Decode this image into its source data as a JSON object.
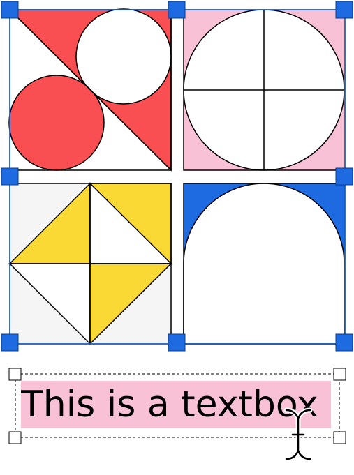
{
  "colors": {
    "red": "#f94e52",
    "pink": "#f8c1d5",
    "yellow": "#fbd935",
    "blue": "#1e6ae1",
    "selection": "#1e6ae1",
    "tile_white": "#ffffff",
    "tile_gray": "#f5f5f5"
  },
  "artwork": {
    "tiles": [
      {
        "name": "red-circles-tile",
        "colors": [
          "red",
          "white"
        ]
      },
      {
        "name": "pink-quartered-circle-tile",
        "colors": [
          "pink",
          "white"
        ]
      },
      {
        "name": "yellow-diamond-tile",
        "colors": [
          "yellow",
          "white"
        ]
      },
      {
        "name": "blue-arch-tile",
        "colors": [
          "blue",
          "white"
        ]
      }
    ]
  },
  "textbox": {
    "text": "This is a textbox"
  },
  "cursor": {
    "icon": "text-cursor-icon"
  }
}
